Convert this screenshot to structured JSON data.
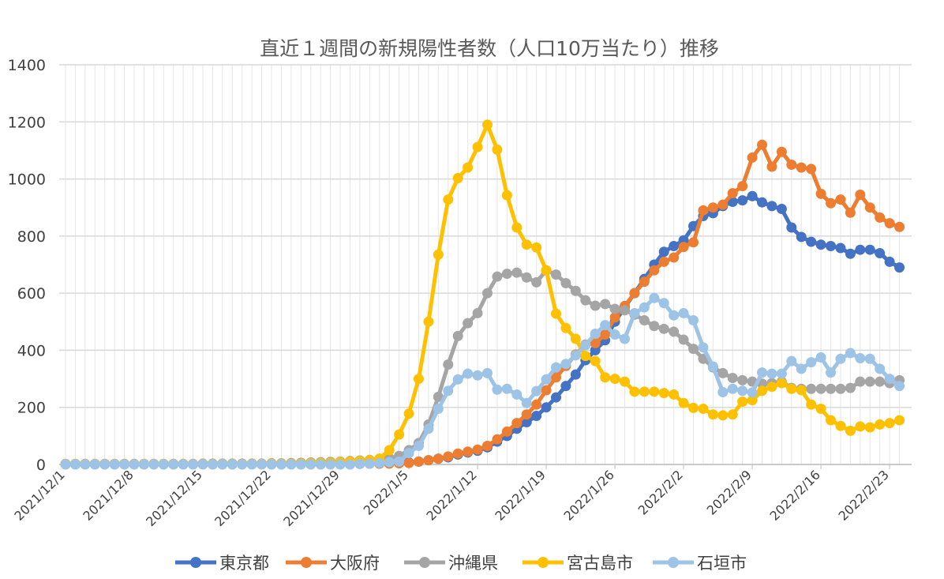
{
  "chart_data": {
    "type": "line",
    "title": "直近１週間の新規陽性者数（人口10万当たり）推移",
    "xlabel": "",
    "ylabel": "",
    "ylim": [
      0,
      1400
    ],
    "yticks": [
      0,
      200,
      400,
      600,
      800,
      1000,
      1200,
      1400
    ],
    "xtick_labels": [
      "2021/12/1",
      "2021/12/8",
      "2021/12/15",
      "2021/12/22",
      "2021/12/29",
      "2022/1/5",
      "2022/1/12",
      "2022/1/19",
      "2022/1/26",
      "2022/2/2",
      "2022/2/9",
      "2022/2/16",
      "2022/2/23"
    ],
    "grid": true,
    "legend": "bottom",
    "x": [
      "2021/12/1",
      "2021/12/2",
      "2021/12/3",
      "2021/12/4",
      "2021/12/5",
      "2021/12/6",
      "2021/12/7",
      "2021/12/8",
      "2021/12/9",
      "2021/12/10",
      "2021/12/11",
      "2021/12/12",
      "2021/12/13",
      "2021/12/14",
      "2021/12/15",
      "2021/12/16",
      "2021/12/17",
      "2021/12/18",
      "2021/12/19",
      "2021/12/20",
      "2021/12/21",
      "2021/12/22",
      "2021/12/23",
      "2021/12/24",
      "2021/12/25",
      "2021/12/26",
      "2021/12/27",
      "2021/12/28",
      "2021/12/29",
      "2021/12/30",
      "2021/12/31",
      "2022/1/1",
      "2022/1/2",
      "2022/1/3",
      "2022/1/4",
      "2022/1/5",
      "2022/1/6",
      "2022/1/7",
      "2022/1/8",
      "2022/1/9",
      "2022/1/10",
      "2022/1/11",
      "2022/1/12",
      "2022/1/13",
      "2022/1/14",
      "2022/1/15",
      "2022/1/16",
      "2022/1/17",
      "2022/1/18",
      "2022/1/19",
      "2022/1/20",
      "2022/1/21",
      "2022/1/22",
      "2022/1/23",
      "2022/1/24",
      "2022/1/25",
      "2022/1/26",
      "2022/1/27",
      "2022/1/28",
      "2022/1/29",
      "2022/1/30",
      "2022/1/31",
      "2022/2/1",
      "2022/2/2",
      "2022/2/3",
      "2022/2/4",
      "2022/2/5",
      "2022/2/6",
      "2022/2/7",
      "2022/2/8",
      "2022/2/9",
      "2022/2/10",
      "2022/2/11",
      "2022/2/12",
      "2022/2/13",
      "2022/2/14",
      "2022/2/15",
      "2022/2/16",
      "2022/2/17",
      "2022/2/18",
      "2022/2/19",
      "2022/2/20",
      "2022/2/21",
      "2022/2/22",
      "2022/2/23",
      "2022/2/24"
    ],
    "series": [
      {
        "name": "東京都",
        "color": "#4472C4",
        "values": [
          1,
          1,
          1,
          1,
          1,
          1,
          1,
          1,
          1,
          1,
          1,
          1,
          1,
          1,
          1,
          1,
          1,
          1,
          1,
          1,
          1,
          1,
          1,
          2,
          2,
          2,
          2,
          2,
          2,
          3,
          3,
          3,
          3,
          4,
          5,
          7,
          10,
          15,
          20,
          25,
          35,
          42,
          48,
          60,
          80,
          100,
          125,
          148,
          170,
          200,
          235,
          275,
          315,
          365,
          400,
          435,
          500,
          550,
          600,
          650,
          700,
          745,
          765,
          785,
          835,
          870,
          880,
          905,
          920,
          925,
          940,
          918,
          905,
          895,
          830,
          797,
          780,
          770,
          765,
          758,
          738,
          752,
          752,
          740,
          710,
          690
        ]
      },
      {
        "name": "大阪府",
        "color": "#ED7D31",
        "values": [
          1,
          1,
          1,
          1,
          1,
          1,
          1,
          1,
          1,
          1,
          1,
          1,
          1,
          1,
          1,
          1,
          1,
          1,
          1,
          1,
          1,
          1,
          1,
          1,
          2,
          2,
          2,
          2,
          2,
          2,
          2,
          3,
          3,
          3,
          4,
          5,
          10,
          15,
          20,
          28,
          38,
          45,
          52,
          65,
          88,
          115,
          145,
          175,
          210,
          260,
          305,
          345,
          385,
          420,
          425,
          455,
          515,
          555,
          600,
          640,
          680,
          710,
          725,
          762,
          778,
          890,
          900,
          910,
          950,
          975,
          1075,
          1120,
          1043,
          1095,
          1050,
          1040,
          1035,
          948,
          915,
          928,
          882,
          945,
          900,
          865,
          845,
          832
        ]
      },
      {
        "name": "沖縄県",
        "color": "#A5A5A5",
        "values": [
          2,
          2,
          2,
          2,
          2,
          2,
          2,
          2,
          2,
          2,
          2,
          2,
          2,
          2,
          3,
          3,
          3,
          3,
          3,
          3,
          3,
          4,
          4,
          5,
          6,
          7,
          8,
          9,
          10,
          12,
          14,
          16,
          20,
          22,
          30,
          50,
          75,
          140,
          237,
          350,
          450,
          495,
          530,
          600,
          658,
          668,
          672,
          655,
          638,
          680,
          665,
          635,
          608,
          575,
          556,
          562,
          545,
          540,
          525,
          505,
          485,
          475,
          465,
          437,
          405,
          370,
          340,
          320,
          303,
          295,
          290,
          283,
          285,
          290,
          268,
          265,
          265,
          265,
          265,
          265,
          268,
          290,
          290,
          290,
          285,
          295
        ]
      },
      {
        "name": "宮古島市",
        "color": "#FFC000",
        "values": [
          1,
          1,
          1,
          1,
          1,
          1,
          1,
          1,
          1,
          1,
          1,
          1,
          1,
          1,
          1,
          1,
          1,
          1,
          1,
          1,
          1,
          2,
          2,
          2,
          3,
          4,
          5,
          6,
          8,
          10,
          12,
          15,
          20,
          50,
          105,
          178,
          300,
          500,
          735,
          928,
          1003,
          1040,
          1112,
          1190,
          1103,
          943,
          830,
          770,
          760,
          680,
          528,
          478,
          440,
          380,
          362,
          305,
          300,
          290,
          255,
          255,
          255,
          250,
          245,
          215,
          198,
          195,
          175,
          172,
          175,
          220,
          225,
          258,
          272,
          285,
          265,
          260,
          210,
          195,
          155,
          135,
          118,
          133,
          130,
          140,
          145,
          155
        ]
      },
      {
        "name": "石垣市",
        "color": "#9DC3E6",
        "values": [
          0,
          0,
          0,
          0,
          0,
          0,
          0,
          0,
          0,
          0,
          0,
          0,
          0,
          0,
          0,
          0,
          0,
          0,
          0,
          0,
          0,
          0,
          0,
          0,
          0,
          0,
          0,
          0,
          0,
          0,
          2,
          3,
          5,
          8,
          10,
          40,
          65,
          125,
          195,
          258,
          298,
          318,
          312,
          320,
          262,
          265,
          245,
          215,
          257,
          298,
          340,
          352,
          382,
          418,
          458,
          488,
          455,
          440,
          530,
          550,
          583,
          565,
          522,
          530,
          505,
          410,
          343,
          253,
          265,
          258,
          252,
          322,
          318,
          318,
          362,
          335,
          358,
          375,
          322,
          370,
          390,
          372,
          370,
          335,
          300,
          275
        ]
      }
    ]
  }
}
